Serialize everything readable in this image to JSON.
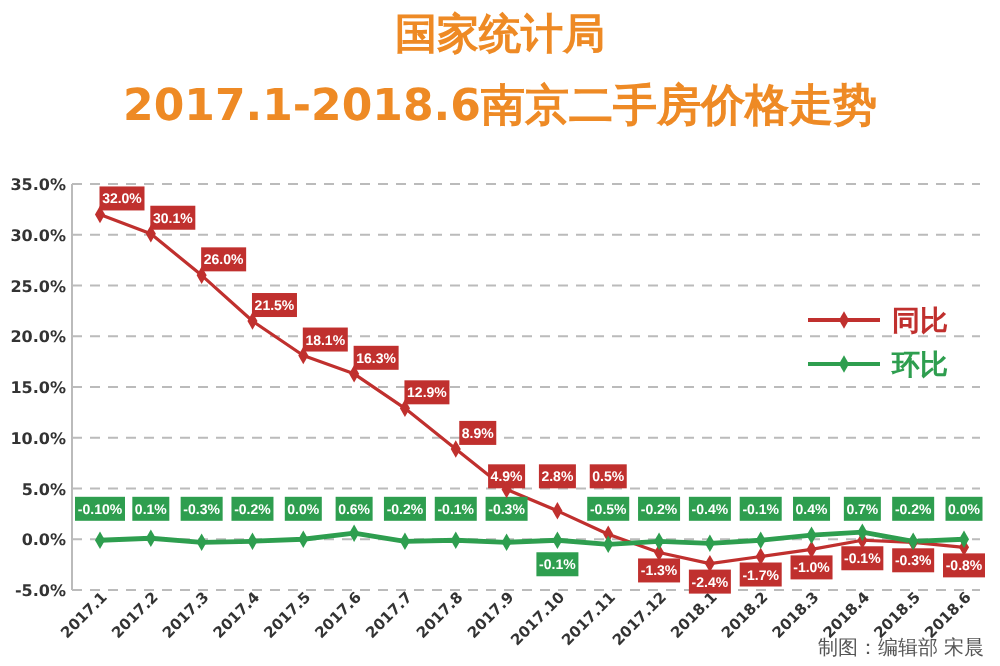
{
  "chart_data": {
    "type": "line",
    "title": "国家统计局",
    "subtitle": "2017.1-2018.6南京二手房价格走势",
    "categories": [
      "2017.1",
      "2017.2",
      "2017.3",
      "2017.4",
      "2017.5",
      "2017.6",
      "2017.7",
      "2017.8",
      "2017.9",
      "2017.10",
      "2017.11",
      "2017.12",
      "2018.1",
      "2018.2",
      "2018.3",
      "2018.4",
      "2018.5",
      "2018.6"
    ],
    "series": [
      {
        "name": "同比",
        "color": "#c0302e",
        "values": [
          32.0,
          30.1,
          26.0,
          21.5,
          18.1,
          16.3,
          12.9,
          8.9,
          4.9,
          2.8,
          0.5,
          -1.3,
          -2.4,
          -1.7,
          -1.0,
          -0.1,
          -0.3,
          -0.8
        ],
        "value_labels": [
          "32.0%",
          "30.1%",
          "26.0%",
          "21.5%",
          "18.1%",
          "16.3%",
          "12.9%",
          "8.9%",
          "4.9%",
          "2.8%",
          "0.5%",
          "-1.3%",
          "-2.4%",
          "-1.7%",
          "-1.0%",
          "-0.1%",
          "-0.3%",
          "-0.8%"
        ]
      },
      {
        "name": "环比",
        "color": "#2e9e4f",
        "values": [
          -0.1,
          0.1,
          -0.3,
          -0.2,
          0.0,
          0.6,
          -0.2,
          -0.1,
          -0.3,
          -0.1,
          -0.5,
          -0.2,
          -0.4,
          -0.1,
          0.4,
          0.7,
          -0.2,
          0.0
        ],
        "value_labels": [
          "-0.10%",
          "0.1%",
          "-0.3%",
          "-0.2%",
          "0.0%",
          "0.6%",
          "-0.2%",
          "-0.1%",
          "-0.3%",
          "-0.1%",
          "-0.5%",
          "-0.2%",
          "-0.4%",
          "-0.1%",
          "0.4%",
          "0.7%",
          "-0.2%",
          "0.0%"
        ]
      }
    ],
    "ylim": [
      -5,
      35
    ],
    "yticks": [
      {
        "value": -5,
        "label": "-5.0%"
      },
      {
        "value": 0,
        "label": "0.0%"
      },
      {
        "value": 5,
        "label": "5.0%"
      },
      {
        "value": 10,
        "label": "10.0%"
      },
      {
        "value": 15,
        "label": "15.0%"
      },
      {
        "value": 20,
        "label": "20.0%"
      },
      {
        "value": 25,
        "label": "25.0%"
      },
      {
        "value": 30,
        "label": "30.0%"
      },
      {
        "value": 35,
        "label": "35.0%"
      }
    ],
    "grid": "y",
    "legend": "right",
    "marker": "diamond",
    "line_style": "solid",
    "annotations": [
      "制图：编辑部 宋晨"
    ]
  }
}
